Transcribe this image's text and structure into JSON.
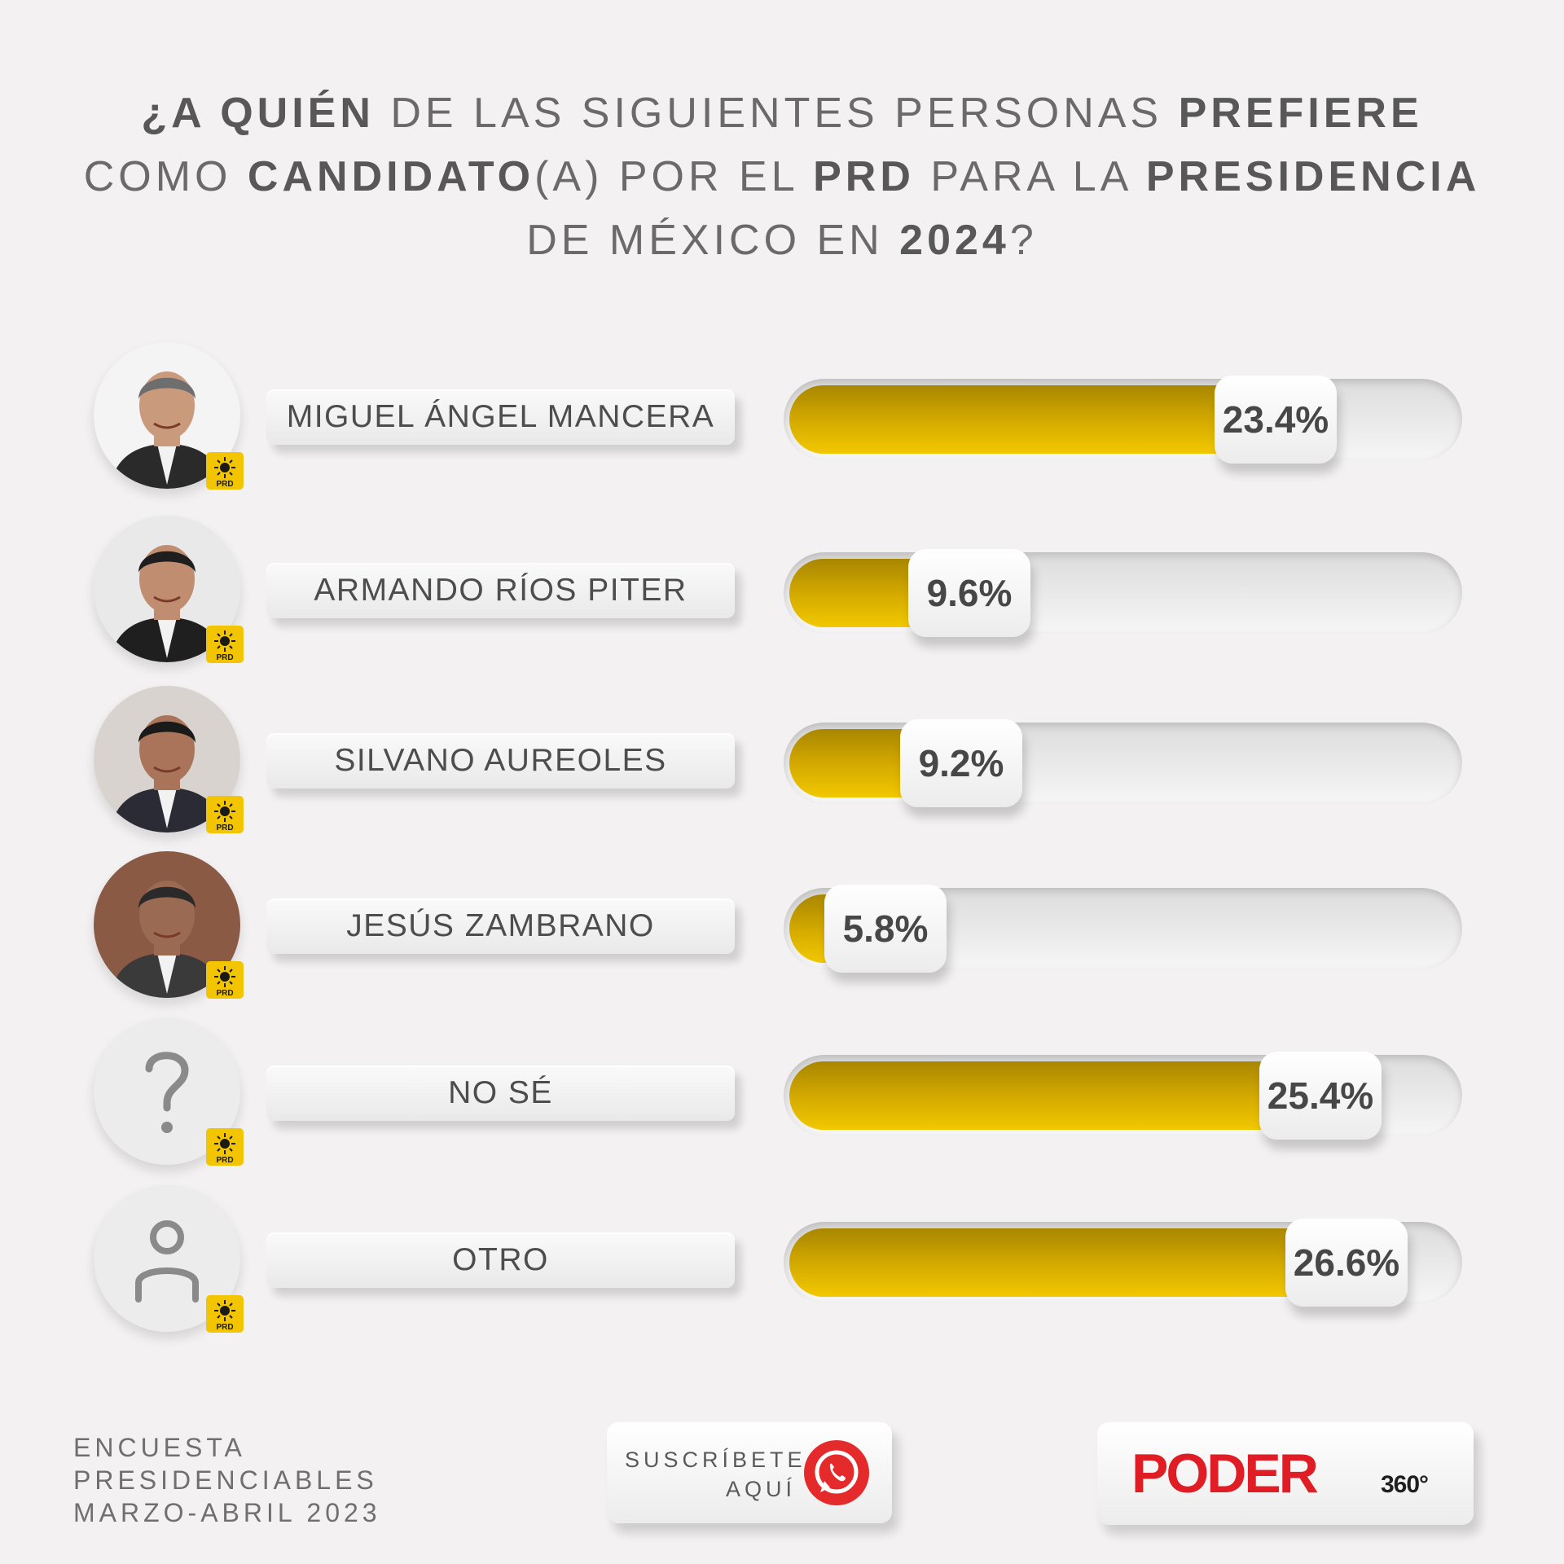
{
  "title": {
    "line1": [
      {
        "text": "¿A QUIÉN",
        "bold": true
      },
      {
        "text": " DE LAS SIGUIENTES PERSONAS ",
        "bold": false
      },
      {
        "text": "PREFIERE",
        "bold": true
      }
    ],
    "line2": [
      {
        "text": "COMO ",
        "bold": false
      },
      {
        "text": "CANDIDATO",
        "bold": true
      },
      {
        "text": "(A) POR EL ",
        "bold": false
      },
      {
        "text": "PRD",
        "bold": true
      },
      {
        "text": " PARA LA ",
        "bold": false
      },
      {
        "text": "PRESIDENCIA",
        "bold": true
      }
    ],
    "line3": [
      {
        "text": "DE MÉXICO EN ",
        "bold": false
      },
      {
        "text": "2024",
        "bold": true
      },
      {
        "text": "?",
        "bold": false
      }
    ]
  },
  "chart_data": {
    "type": "bar",
    "orientation": "horizontal",
    "categories": [
      "MIGUEL ÁNGEL MANCERA",
      "ARMANDO RÍOS PITER",
      "SILVANO AUREOLES",
      "JESÚS ZAMBRANO",
      "NO SÉ",
      "OTRO"
    ],
    "values": [
      23.4,
      9.6,
      9.2,
      5.8,
      25.4,
      26.6
    ],
    "value_labels": [
      "23.4%",
      "9.6%",
      "9.2%",
      "5.8%",
      "25.4%",
      "26.6%"
    ],
    "unit": "%",
    "xlim": [
      0,
      30
    ],
    "bar_color": "#d6ac00",
    "track_color": "#e4e4e4"
  },
  "rows": [
    {
      "avatar": "photo",
      "badge": "PRD"
    },
    {
      "avatar": "photo",
      "badge": "PRD"
    },
    {
      "avatar": "photo",
      "badge": "PRD"
    },
    {
      "avatar": "photo",
      "badge": "PRD"
    },
    {
      "avatar": "question-icon",
      "badge": "PRD"
    },
    {
      "avatar": "person-icon",
      "badge": "PRD"
    }
  ],
  "footer": {
    "line1": "ENCUESTA",
    "line2": "PRESIDENCIABLES",
    "line3": "MARZO-ABRIL 2023"
  },
  "subscribe": {
    "line1": "SUSCRÍBETE",
    "line2": "AQUÍ",
    "icon": "whatsapp-icon"
  },
  "logo": {
    "main": "PODER",
    "sub": "360°",
    "color": "#e01c24"
  }
}
